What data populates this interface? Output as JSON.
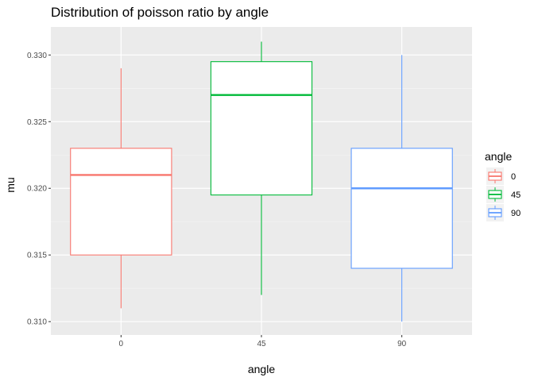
{
  "chart_data": {
    "type": "boxplot",
    "title": "Distribution of poisson ratio by angle",
    "xlabel": "angle",
    "ylabel": "mu",
    "categories": [
      "0",
      "45",
      "90"
    ],
    "ylim": [
      0.309,
      0.3321
    ],
    "y_ticks": [
      "0.310",
      "0.315",
      "0.320",
      "0.325",
      "0.330"
    ],
    "grid": true,
    "legend": {
      "title": "angle",
      "position": "right",
      "entries": [
        "0",
        "45",
        "90"
      ]
    },
    "series": [
      {
        "category": "0",
        "color": "#F8766D",
        "whisker_low": 0.311,
        "q1": 0.315,
        "median": 0.321,
        "q3": 0.323,
        "whisker_high": 0.329
      },
      {
        "category": "45",
        "color": "#00BA38",
        "whisker_low": 0.312,
        "q1": 0.3195,
        "median": 0.327,
        "q3": 0.3295,
        "whisker_high": 0.331
      },
      {
        "category": "90",
        "color": "#619CFF",
        "whisker_low": 0.31,
        "q1": 0.314,
        "median": 0.32,
        "q3": 0.323,
        "whisker_high": 0.33
      }
    ]
  }
}
